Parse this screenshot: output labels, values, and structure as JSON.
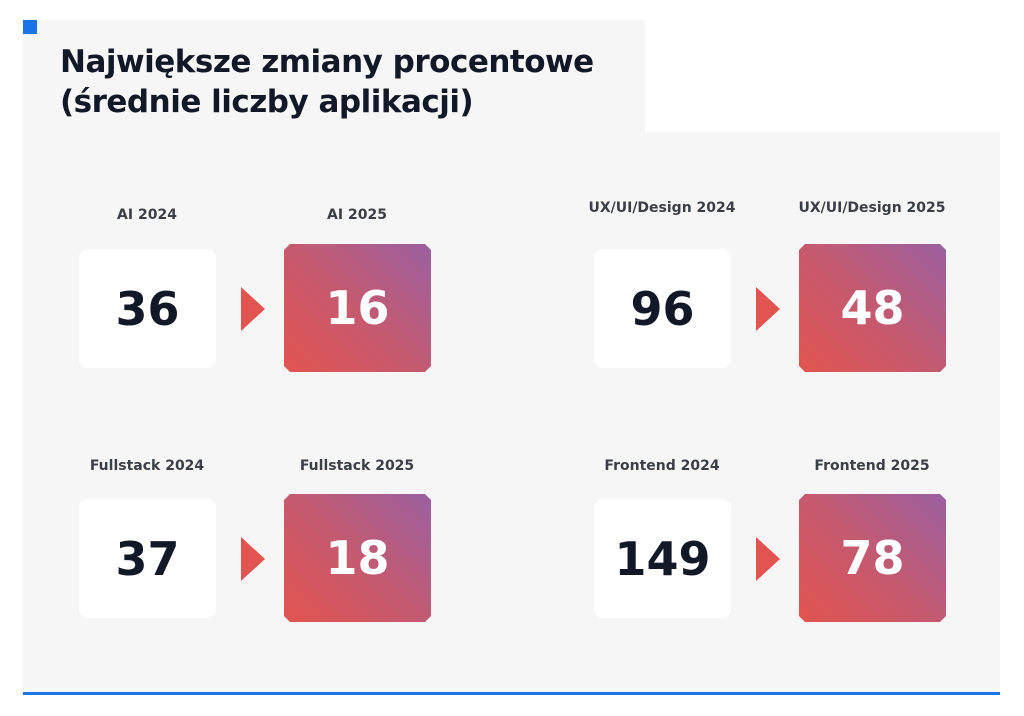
{
  "title": {
    "line1": "Największe zmiany procentowe",
    "line2": "(średnie liczby aplikacji)"
  },
  "colors": {
    "accent": "#1a73e8",
    "arrow": "#e25450",
    "gradient_start": "#e2544f",
    "gradient_end": "#9a60a0"
  },
  "comparisons": [
    {
      "label_before": "AI 2024",
      "value_before": "36",
      "label_after": "AI 2025",
      "value_after": "16"
    },
    {
      "label_before": "UX/UI/Design 2024",
      "value_before": "96",
      "label_after": "UX/UI/Design 2025",
      "value_after": "48"
    },
    {
      "label_before": "Fullstack 2024",
      "value_before": "37",
      "label_after": "Fullstack 2025",
      "value_after": "18"
    },
    {
      "label_before": "Frontend 2024",
      "value_before": "149",
      "label_after": "Frontend 2025",
      "value_after": "78"
    }
  ]
}
